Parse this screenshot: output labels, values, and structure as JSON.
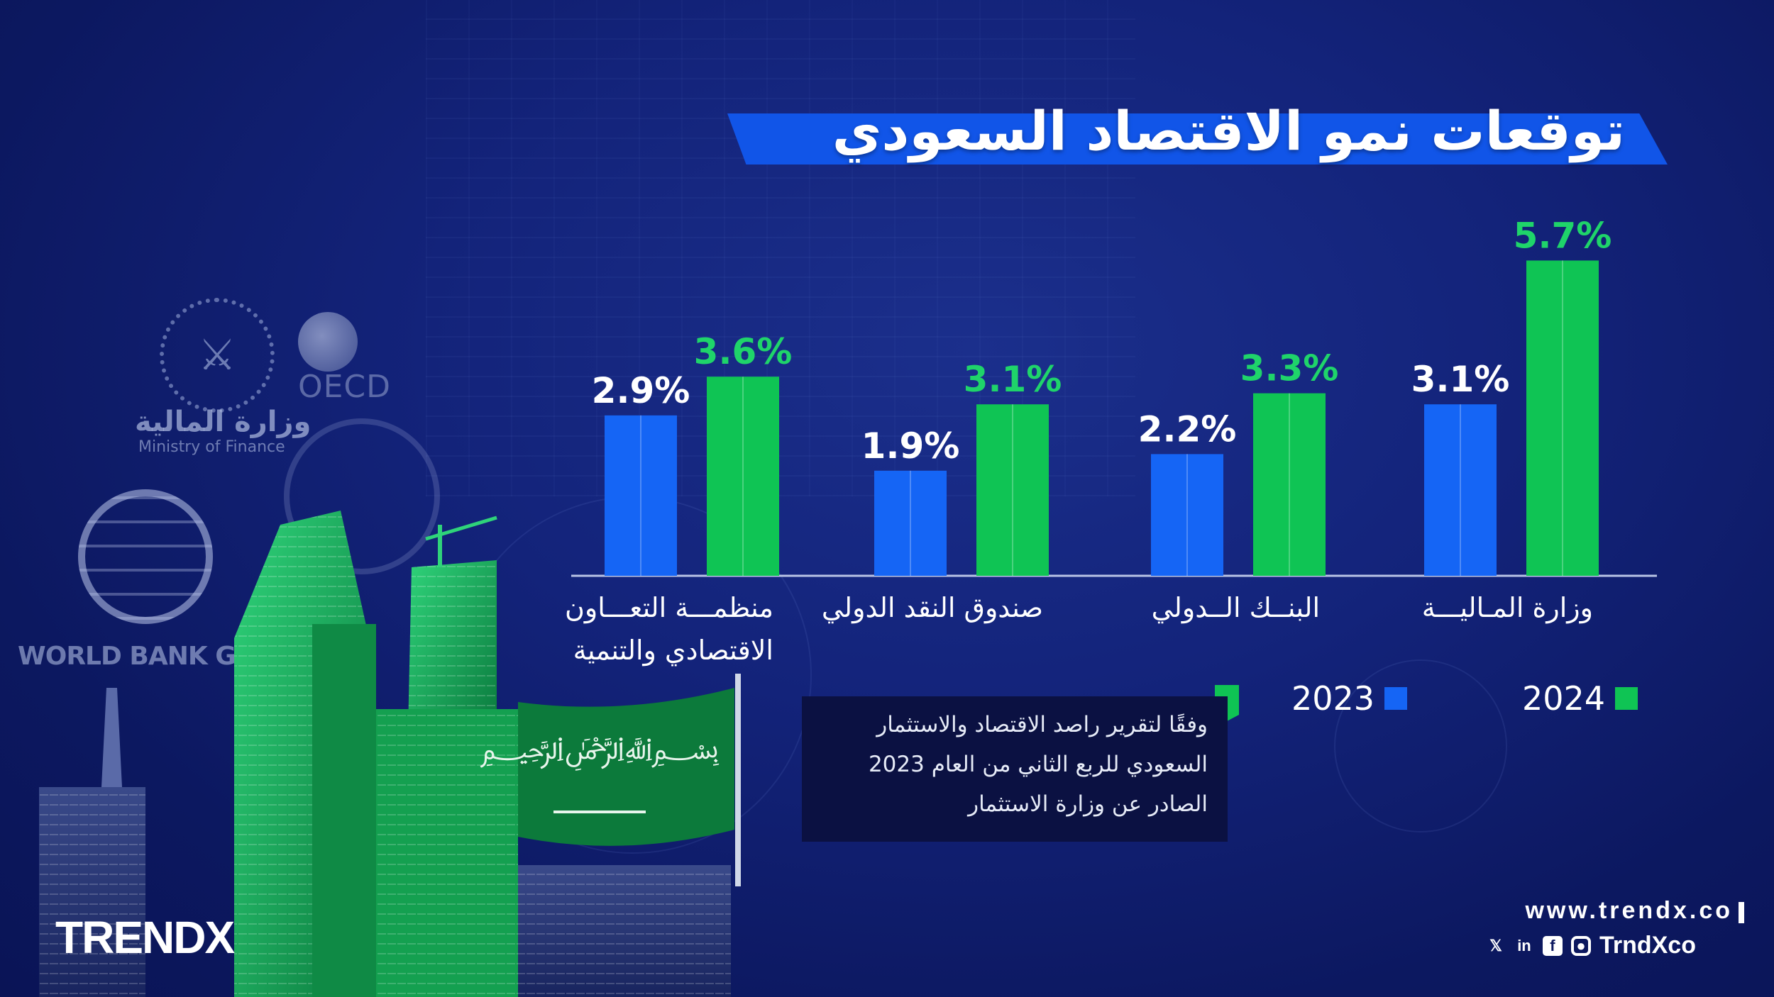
{
  "title": "توقعات نمو الاقتصاد السعودي",
  "colors": {
    "y2023": "#1565f5",
    "y2024": "#0fc454",
    "label2024": "#1fd46a",
    "banner": "#1155e8"
  },
  "chart_data": {
    "type": "bar",
    "title": "توقعات نمو الاقتصاد السعودي",
    "categories": [
      "منظمـــة التعـــاون الاقتصادي والتنمية",
      "صندوق النقد الدولي",
      "البنــك الــدولي",
      "وزارة المـاليـــة"
    ],
    "category_lines": [
      [
        "منظمـــة التعـــاون",
        "الاقتصادي والتنمية"
      ],
      [
        "صندوق النقد الدولي"
      ],
      [
        "البنــك الــدولي"
      ],
      [
        "وزارة المـاليـــة"
      ]
    ],
    "series": [
      {
        "name": "2023",
        "values": [
          2.9,
          1.9,
          2.2,
          3.1
        ],
        "labels": [
          "2.9%",
          "1.9%",
          "2.2%",
          "3.1%"
        ]
      },
      {
        "name": "2024",
        "values": [
          3.6,
          3.1,
          3.3,
          5.7
        ],
        "labels": [
          "3.6%",
          "3.1%",
          "3.3%",
          "5.7%"
        ]
      }
    ],
    "ylim": [
      0,
      6
    ],
    "legend": [
      "2023",
      "2024"
    ]
  },
  "note": {
    "lines": [
      "وفقًا لتقرير راصد الاقتصاد والاستثمار",
      "السعودي للربع الثاني من العام 2023",
      "الصادر عن وزارة الاستثمار"
    ]
  },
  "logos": {
    "mof_ar": "وزارة المالية",
    "mof_en": "Ministry of Finance",
    "oecd": "OECD",
    "worldbank": "WORLD BANK GROUP"
  },
  "brand": "TRENDX",
  "website": "www.trendx.co",
  "social_handle": "TrndXco",
  "social_icons": [
    "x-icon",
    "linkedin-icon",
    "facebook-icon",
    "instagram-icon"
  ]
}
